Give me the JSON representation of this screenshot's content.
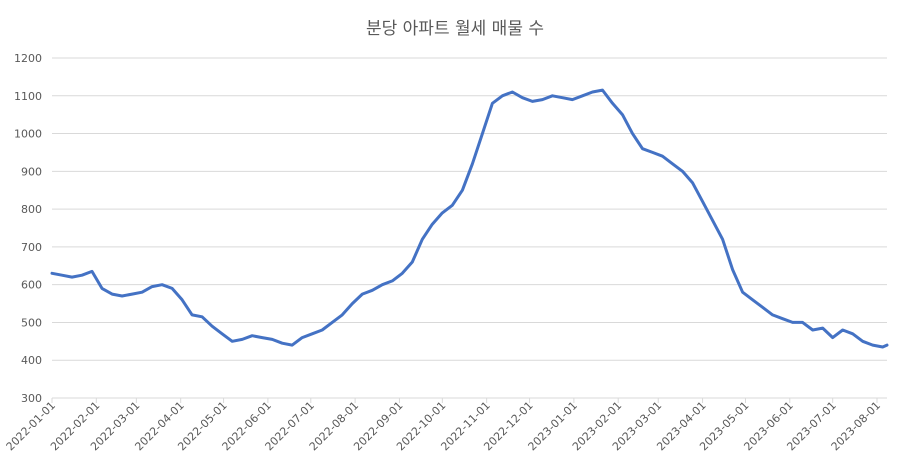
{
  "chart_data": {
    "type": "line",
    "title": "분당 아파트 월세 매물 수",
    "xlabel": "",
    "ylabel": "",
    "ylim": [
      300,
      1200
    ],
    "yticks": [
      300,
      400,
      500,
      600,
      700,
      800,
      900,
      1000,
      1100,
      1200
    ],
    "grid": true,
    "legend": "none",
    "line_color": "#4472C4",
    "grid_color": "#d9d9d9",
    "text_color": "#595959",
    "x_tick_labels": [
      "2022-01-01",
      "2022-02-01",
      "2022-03-01",
      "2022-04-01",
      "2022-05-01",
      "2022-06-01",
      "2022-07-01",
      "2022-08-01",
      "2022-09-01",
      "2022-10-01",
      "2022-11-01",
      "2022-12-01",
      "2023-01-01",
      "2023-02-01",
      "2023-03-01",
      "2023-04-01",
      "2023-05-01",
      "2023-06-01",
      "2023-07-01",
      "2023-08-01"
    ],
    "series": [
      {
        "x": [
          "2022-01-01",
          "2022-01-08",
          "2022-01-15",
          "2022-01-22",
          "2022-01-29",
          "2022-02-05",
          "2022-02-12",
          "2022-02-19",
          "2022-02-26",
          "2022-03-05",
          "2022-03-12",
          "2022-03-19",
          "2022-03-26",
          "2022-04-02",
          "2022-04-09",
          "2022-04-16",
          "2022-04-23",
          "2022-04-30",
          "2022-05-07",
          "2022-05-14",
          "2022-05-21",
          "2022-05-28",
          "2022-06-04",
          "2022-06-11",
          "2022-06-18",
          "2022-06-25",
          "2022-07-02",
          "2022-07-09",
          "2022-07-16",
          "2022-07-23",
          "2022-07-30",
          "2022-08-06",
          "2022-08-13",
          "2022-08-20",
          "2022-08-27",
          "2022-09-03",
          "2022-09-10",
          "2022-09-17",
          "2022-09-24",
          "2022-10-01",
          "2022-10-08",
          "2022-10-15",
          "2022-10-22",
          "2022-10-29",
          "2022-11-05",
          "2022-11-12",
          "2022-11-19",
          "2022-11-26",
          "2022-12-03",
          "2022-12-10",
          "2022-12-17",
          "2022-12-24",
          "2022-12-31",
          "2023-01-07",
          "2023-01-14",
          "2023-01-21",
          "2023-01-28",
          "2023-02-04",
          "2023-02-11",
          "2023-02-18",
          "2023-02-25",
          "2023-03-04",
          "2023-03-11",
          "2023-03-18",
          "2023-03-25",
          "2023-04-01",
          "2023-04-08",
          "2023-04-15",
          "2023-04-22",
          "2023-04-29",
          "2023-05-06",
          "2023-05-13",
          "2023-05-20",
          "2023-05-27",
          "2023-06-03",
          "2023-06-10",
          "2023-06-17",
          "2023-06-24",
          "2023-07-01",
          "2023-07-08",
          "2023-07-15",
          "2023-07-22",
          "2023-07-29",
          "2023-08-05",
          "2023-08-08"
        ],
        "values": [
          630,
          625,
          620,
          625,
          635,
          590,
          575,
          570,
          575,
          580,
          595,
          600,
          590,
          560,
          520,
          515,
          490,
          470,
          450,
          455,
          465,
          460,
          455,
          445,
          440,
          460,
          470,
          480,
          500,
          520,
          550,
          575,
          585,
          600,
          610,
          630,
          660,
          720,
          760,
          790,
          810,
          850,
          920,
          1000,
          1080,
          1100,
          1110,
          1095,
          1085,
          1090,
          1100,
          1095,
          1090,
          1100,
          1110,
          1115,
          1080,
          1050,
          1000,
          960,
          950,
          940,
          920,
          900,
          870,
          820,
          770,
          720,
          640,
          580,
          560,
          540,
          520,
          510,
          500,
          500,
          480,
          485,
          460,
          480,
          470,
          450,
          440,
          435,
          440
        ]
      }
    ]
  }
}
